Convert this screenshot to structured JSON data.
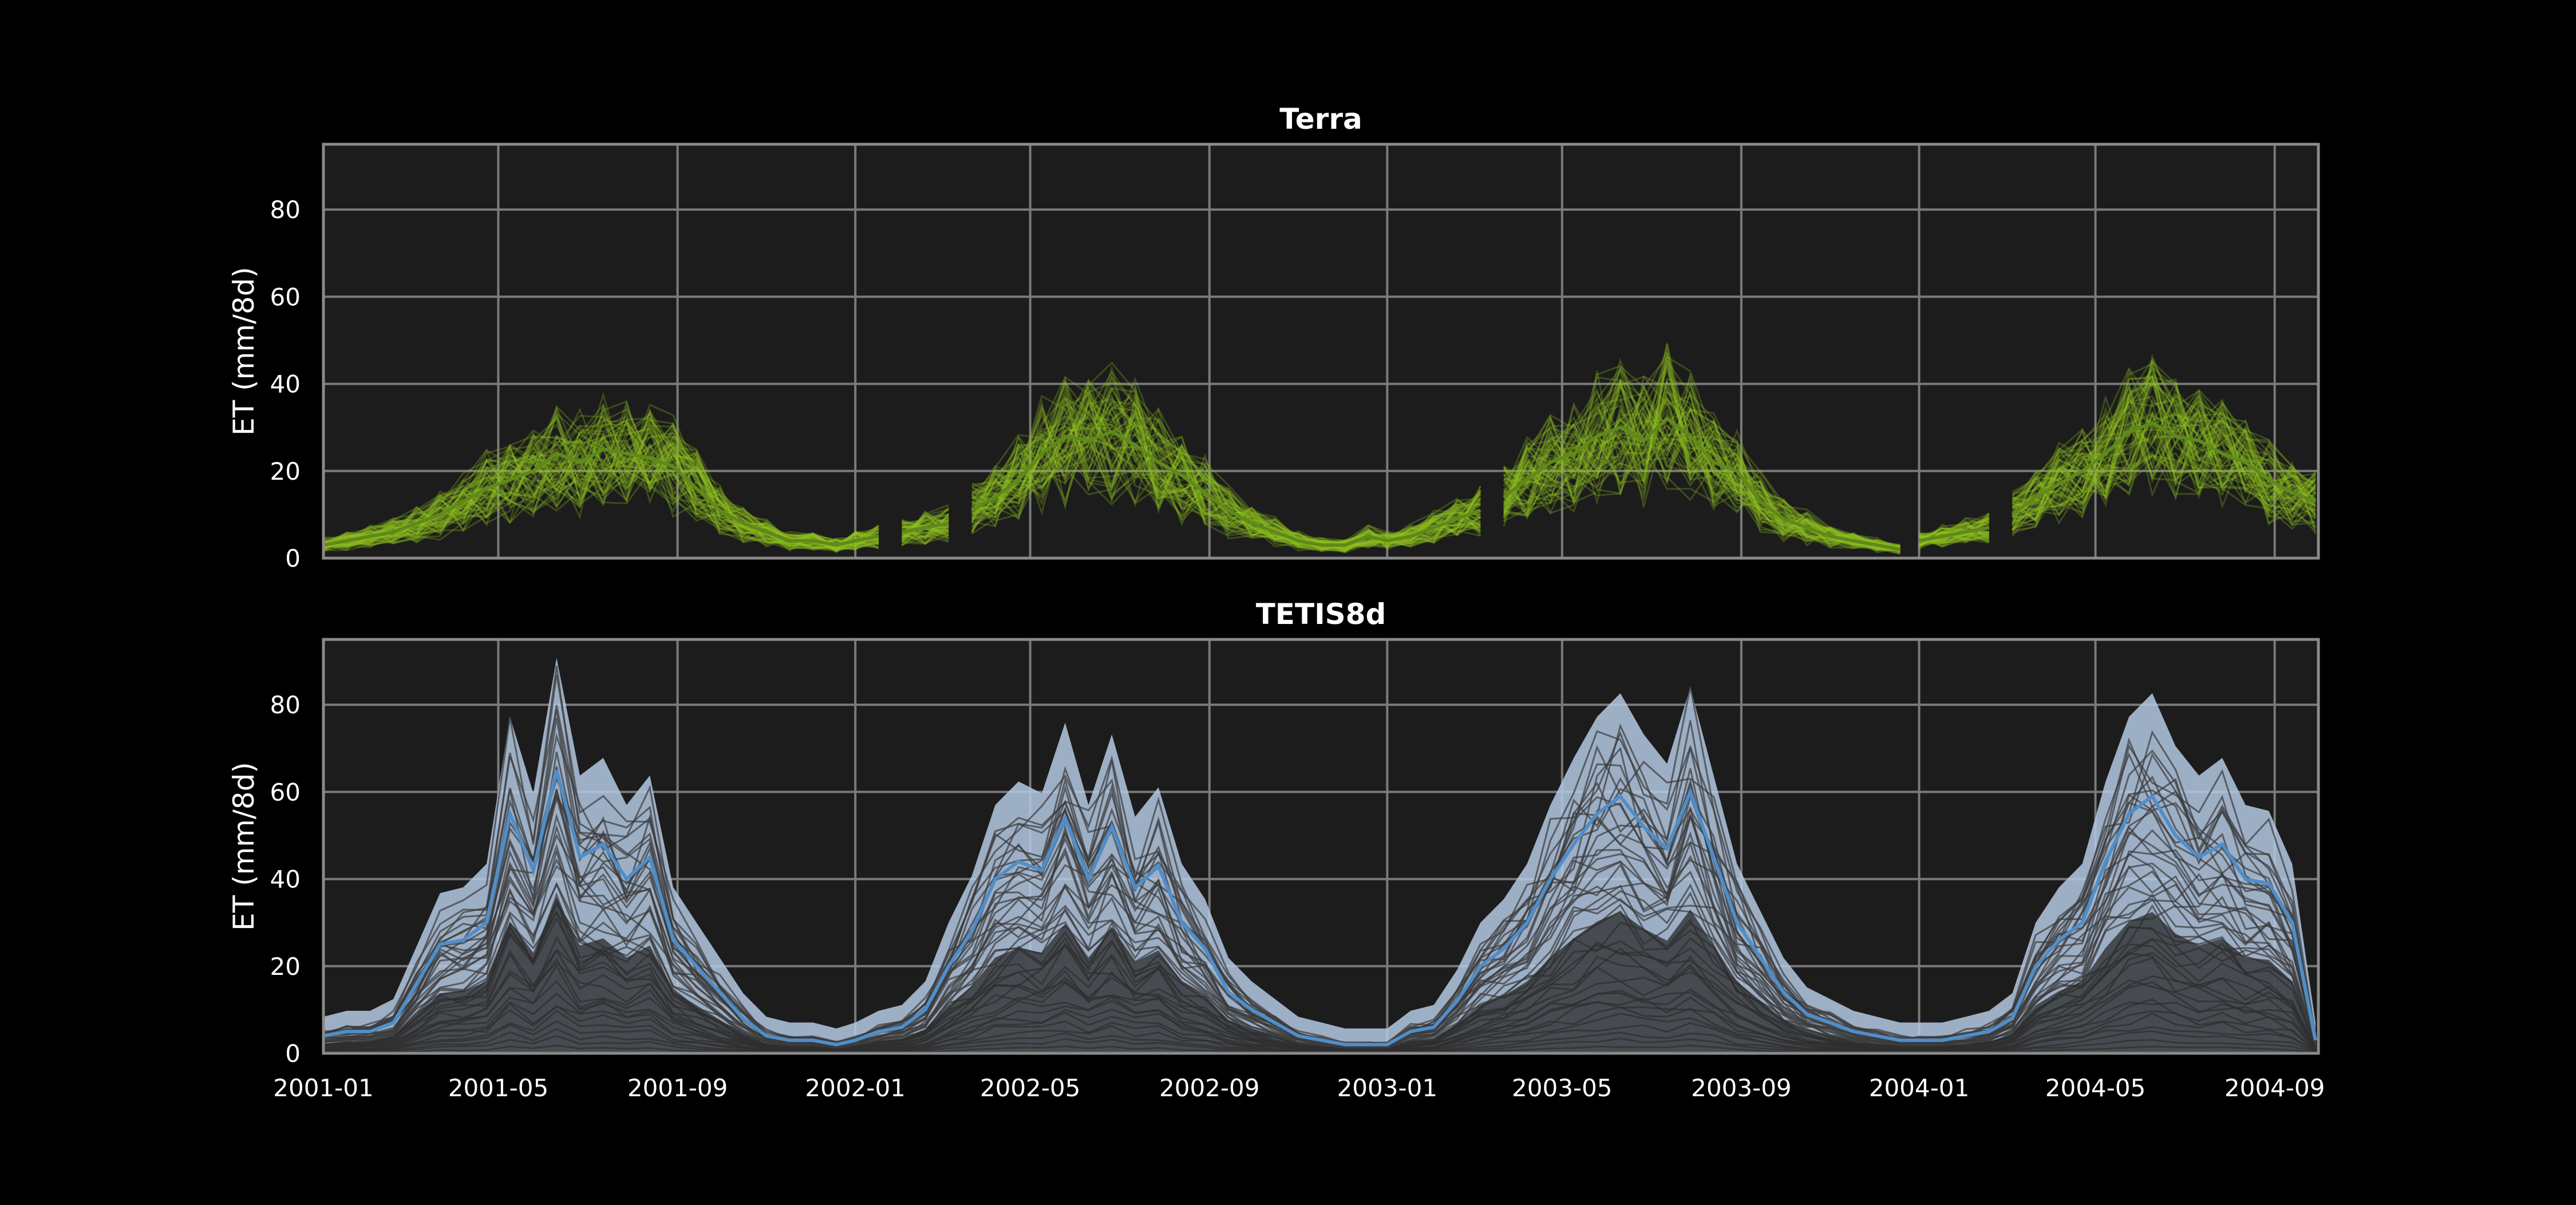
{
  "chart_data": [
    {
      "type": "line",
      "title": "Terra",
      "ylabel": "ET (mm/8d)",
      "xlabel": "",
      "ylim": [
        0,
        95
      ],
      "yticks": [
        0,
        20,
        40,
        60,
        80
      ],
      "xlim": [
        "2001-01-01",
        "2004-10-01"
      ],
      "xticks": [
        "2001-01",
        "2001-05",
        "2001-09",
        "2002-01",
        "2002-05",
        "2002-09",
        "2003-01",
        "2003-05",
        "2003-09",
        "2004-01",
        "2004-05",
        "2004-09"
      ],
      "grid": true,
      "colors": {
        "ensemble": "#8fc31f",
        "mean": "#5f8a1a",
        "background": "#1c1c1c"
      },
      "series": [
        {
          "role": "mean",
          "x": [
            "2001-01-01",
            "2001-01-17",
            "2001-02-02",
            "2001-02-18",
            "2001-03-06",
            "2001-03-22",
            "2001-04-07",
            "2001-04-23",
            "2001-05-09",
            "2001-05-25",
            "2001-06-10",
            "2001-06-26",
            "2001-07-12",
            "2001-07-28",
            "2001-08-13",
            "2001-08-29",
            "2001-09-14",
            "2001-09-30",
            "2001-10-16",
            "2001-11-01",
            "2001-11-17",
            "2001-12-03",
            "2001-12-19",
            "2002-01-01",
            "2002-01-17",
            "2002-02-02",
            "2002-02-18",
            "2002-03-06",
            "2002-03-22",
            "2002-04-07",
            "2002-04-23",
            "2002-05-09",
            "2002-05-25",
            "2002-06-10",
            "2002-06-26",
            "2002-07-12",
            "2002-07-28",
            "2002-08-13",
            "2002-08-29",
            "2002-09-14",
            "2002-09-30",
            "2002-10-16",
            "2002-11-01",
            "2002-11-17",
            "2002-12-03",
            "2002-12-19",
            "2003-01-01",
            "2003-01-17",
            "2003-02-02",
            "2003-02-18",
            "2003-03-06",
            "2003-03-22",
            "2003-04-07",
            "2003-04-23",
            "2003-05-09",
            "2003-05-25",
            "2003-06-10",
            "2003-06-26",
            "2003-07-12",
            "2003-07-28",
            "2003-08-13",
            "2003-08-29",
            "2003-09-14",
            "2003-09-30",
            "2003-10-16",
            "2003-11-01",
            "2003-11-17",
            "2003-12-03",
            "2003-12-19",
            "2004-01-01",
            "2004-01-17",
            "2004-02-02",
            "2004-02-18",
            "2004-03-05",
            "2004-03-21",
            "2004-04-06",
            "2004-04-22",
            "2004-05-08",
            "2004-05-24",
            "2004-06-09",
            "2004-06-25",
            "2004-07-11",
            "2004-07-27",
            "2004-08-12",
            "2004-08-28",
            "2004-09-13",
            "2004-09-29"
          ],
          "y": [
            3,
            4,
            5,
            6,
            8,
            10,
            13,
            16,
            18,
            20,
            24,
            22,
            25,
            24,
            23,
            21,
            16,
            11,
            8,
            6,
            4,
            4,
            3,
            4,
            5,
            6,
            7,
            8,
            11,
            14,
            18,
            24,
            28,
            27,
            29,
            26,
            22,
            19,
            15,
            11,
            8,
            6,
            4,
            3,
            3,
            5,
            4,
            5,
            7,
            9,
            11,
            14,
            18,
            22,
            24,
            28,
            30,
            27,
            32,
            28,
            22,
            20,
            13,
            9,
            7,
            5,
            4,
            3,
            2,
            4,
            5,
            6,
            7,
            10,
            14,
            17,
            20,
            24,
            29,
            31,
            28,
            27,
            24,
            22,
            18,
            15,
            13
          ],
          "gaps": [
            "2002-01-25",
            "2002-03-14",
            "2003-03-14",
            "2003-12-27",
            "2004-02-26"
          ]
        }
      ],
      "ensemble_band": {
        "low": "p5",
        "high": "p95"
      }
    },
    {
      "type": "line",
      "title": "TETIS8d",
      "ylabel": "ET (mm/8d)",
      "xlabel": "",
      "ylim": [
        0,
        95
      ],
      "yticks": [
        0,
        20,
        40,
        60,
        80
      ],
      "xlim": [
        "2001-01-01",
        "2004-10-01"
      ],
      "xticks": [
        "2001-01",
        "2001-05",
        "2001-09",
        "2002-01",
        "2002-05",
        "2002-09",
        "2003-01",
        "2003-05",
        "2003-09",
        "2004-01",
        "2004-05",
        "2004-09"
      ],
      "grid": true,
      "colors": {
        "ensemble": "#b4c9e3",
        "mean": "#4f8ec9",
        "background": "#1c1c1c"
      },
      "series": [
        {
          "role": "mean",
          "x": [
            "2001-01-01",
            "2001-01-17",
            "2001-02-02",
            "2001-02-18",
            "2001-03-06",
            "2001-03-22",
            "2001-04-07",
            "2001-04-23",
            "2001-05-09",
            "2001-05-25",
            "2001-06-10",
            "2001-06-26",
            "2001-07-12",
            "2001-07-28",
            "2001-08-13",
            "2001-08-29",
            "2001-09-14",
            "2001-09-30",
            "2001-10-16",
            "2001-11-01",
            "2001-11-17",
            "2001-12-03",
            "2001-12-19",
            "2002-01-01",
            "2002-01-17",
            "2002-02-02",
            "2002-02-18",
            "2002-03-06",
            "2002-03-22",
            "2002-04-07",
            "2002-04-23",
            "2002-05-09",
            "2002-05-25",
            "2002-06-10",
            "2002-06-26",
            "2002-07-12",
            "2002-07-28",
            "2002-08-13",
            "2002-08-29",
            "2002-09-14",
            "2002-09-30",
            "2002-10-16",
            "2002-11-01",
            "2002-11-17",
            "2002-12-03",
            "2002-12-19",
            "2003-01-01",
            "2003-01-17",
            "2003-02-02",
            "2003-02-18",
            "2003-03-06",
            "2003-03-22",
            "2003-04-07",
            "2003-04-23",
            "2003-05-09",
            "2003-05-25",
            "2003-06-10",
            "2003-06-26",
            "2003-07-12",
            "2003-07-28",
            "2003-08-13",
            "2003-08-29",
            "2003-09-14",
            "2003-09-30",
            "2003-10-16",
            "2003-11-01",
            "2003-11-17",
            "2003-12-03",
            "2003-12-19",
            "2004-01-01",
            "2004-01-17",
            "2004-02-02",
            "2004-02-18",
            "2004-03-05",
            "2004-03-21",
            "2004-04-06",
            "2004-04-22",
            "2004-05-08",
            "2004-05-24",
            "2004-06-09",
            "2004-06-25",
            "2004-07-11",
            "2004-07-27",
            "2004-08-12",
            "2004-08-28",
            "2004-09-13",
            "2004-09-29"
          ],
          "y": [
            4,
            5,
            5,
            7,
            16,
            25,
            26,
            30,
            55,
            42,
            65,
            45,
            48,
            40,
            45,
            26,
            20,
            14,
            8,
            4,
            3,
            3,
            2,
            3,
            5,
            6,
            10,
            20,
            28,
            40,
            44,
            42,
            54,
            40,
            52,
            38,
            43,
            30,
            24,
            14,
            10,
            7,
            4,
            3,
            2,
            2,
            2,
            5,
            6,
            12,
            20,
            24,
            30,
            40,
            48,
            55,
            59,
            52,
            47,
            60,
            45,
            30,
            22,
            14,
            9,
            7,
            5,
            4,
            3,
            3,
            3,
            4,
            5,
            8,
            20,
            26,
            30,
            44,
            55,
            59,
            50,
            45,
            48,
            40,
            39,
            30,
            3
          ]
        }
      ],
      "ensemble_band": {
        "low": "min",
        "high": "max"
      }
    }
  ]
}
